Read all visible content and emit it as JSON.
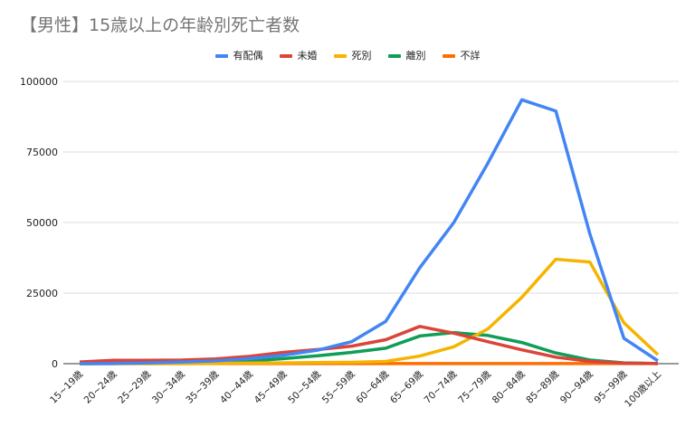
{
  "chart_data": {
    "type": "line",
    "title": "【男性】15歳以上の年齢別死亡者数",
    "xlabel": "",
    "ylabel": "",
    "ylim": [
      0,
      100000
    ],
    "yticks": [
      "0",
      "25000",
      "50000",
      "75000",
      "100000"
    ],
    "grid": true,
    "legend": "top",
    "categories": [
      "15~19歳",
      "20~24歳",
      "25~29歳",
      "30~34歳",
      "35~39歳",
      "40~44歳",
      "45~49歳",
      "50~54歳",
      "55~59歳",
      "60~64歳",
      "65~69歳",
      "70~74歳",
      "75~79歳",
      "80~84歳",
      "85~89歳",
      "90~94歳",
      "95~99歳",
      "100歳以上"
    ],
    "series": [
      {
        "name": "有配偶",
        "color": "#4285f4",
        "values": [
          0,
          100,
          300,
          600,
          1000,
          1800,
          3000,
          4800,
          7800,
          15000,
          34000,
          50000,
          71000,
          93500,
          89500,
          46000,
          9000,
          1000
        ]
      },
      {
        "name": "未婚",
        "color": "#db4437",
        "values": [
          600,
          1200,
          1200,
          1300,
          1700,
          2600,
          4000,
          5000,
          6200,
          8500,
          13200,
          10800,
          7800,
          4900,
          2300,
          800,
          200,
          50
        ]
      },
      {
        "name": "死別",
        "color": "#f4b400",
        "values": [
          0,
          0,
          0,
          50,
          100,
          200,
          300,
          400,
          500,
          800,
          2700,
          6000,
          12300,
          23500,
          37000,
          36000,
          14500,
          3200
        ]
      },
      {
        "name": "離別",
        "color": "#0f9d58",
        "values": [
          0,
          50,
          150,
          300,
          500,
          900,
          1800,
          2800,
          4000,
          5500,
          9800,
          11000,
          10000,
          7500,
          3800,
          1300,
          300,
          50
        ]
      },
      {
        "name": "不詳",
        "color": "#ff6d01",
        "values": [
          50,
          50,
          50,
          50,
          50,
          50,
          50,
          50,
          50,
          50,
          50,
          50,
          50,
          50,
          50,
          50,
          50,
          50
        ]
      }
    ]
  }
}
